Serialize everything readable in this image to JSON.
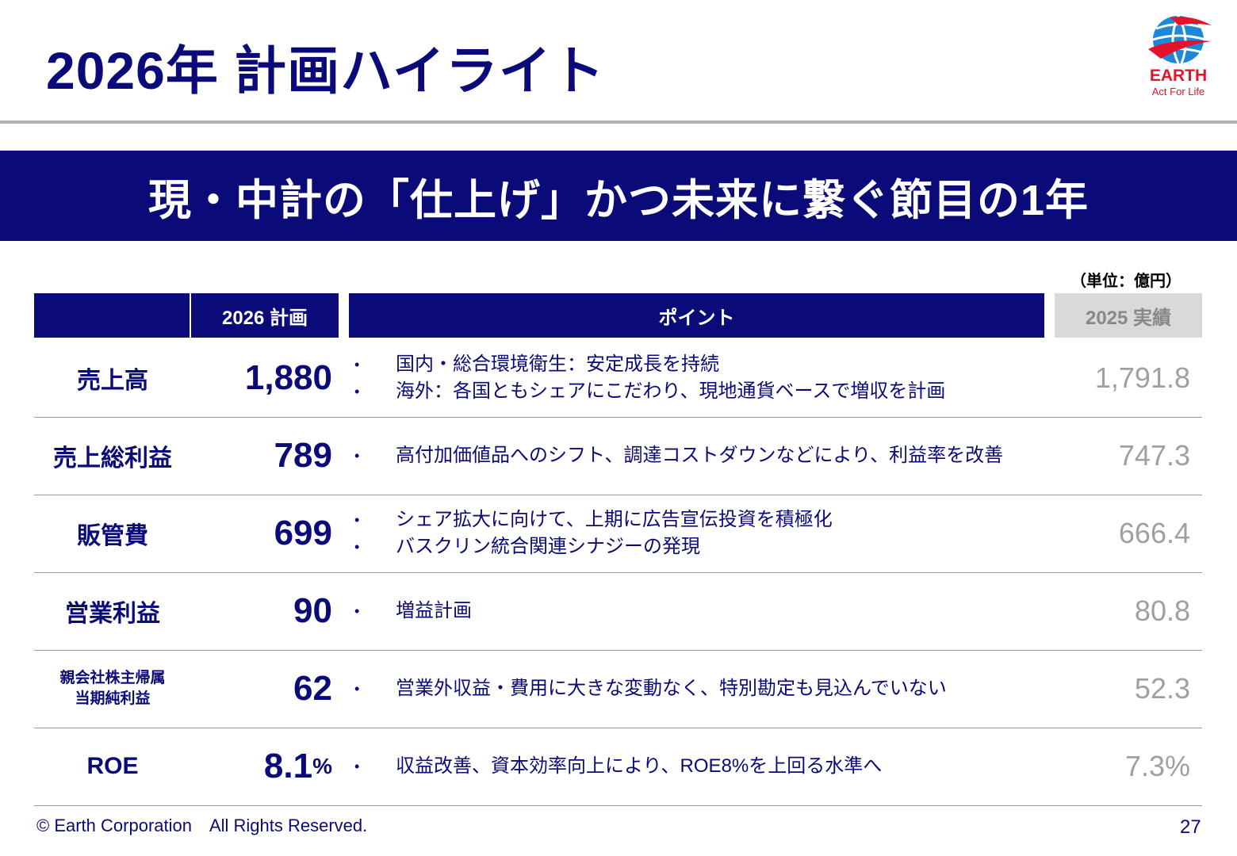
{
  "page": {
    "title": "2026年 計画ハイライト",
    "banner": "現・中計の「仕上げ」かつ未来に繋ぐ節目の1年",
    "unit": "（単位：億円）",
    "footer": "© Earth Corporation　All Rights Reserved.",
    "page_number": "27"
  },
  "logo": {
    "name": "EARTH",
    "tagline": "Act For Life",
    "color": "#e4122a",
    "globe_color": "#1e88d8"
  },
  "table": {
    "headers": {
      "plan": "2026 計画",
      "points": "ポイント",
      "actual": "2025 実績"
    },
    "rows": [
      {
        "label": "売上高",
        "plan": "1,880",
        "plan_suffix": "",
        "points": [
          "国内・総合環境衛生：安定成長を持続",
          "海外：各国ともシェアにこだわり、現地通貨ベースで増収を計画"
        ],
        "actual": "1,791.8"
      },
      {
        "label": "売上総利益",
        "plan": "789",
        "plan_suffix": "",
        "points": [
          "高付加価値品へのシフト、調達コストダウンなどにより、利益率を改善"
        ],
        "actual": "747.3"
      },
      {
        "label": "販管費",
        "plan": "699",
        "plan_suffix": "",
        "points": [
          "シェア拡大に向けて、上期に広告宣伝投資を積極化",
          "バスクリン統合関連シナジーの発現"
        ],
        "actual": "666.4"
      },
      {
        "label": "営業利益",
        "plan": "90",
        "plan_suffix": "",
        "points": [
          "増益計画"
        ],
        "actual": "80.8"
      },
      {
        "label_line1": "親会社株主帰属",
        "label_line2": "当期純利益",
        "plan": "62",
        "plan_suffix": "",
        "points": [
          "営業外収益・費用に大きな変動なく、特別勘定も見込んでいない"
        ],
        "actual": "52.3"
      },
      {
        "label": "ROE",
        "plan": "8.1",
        "plan_suffix": "%",
        "points": [
          "収益改善、資本効率向上により、ROE8%を上回る水準へ"
        ],
        "actual": "7.3%"
      }
    ]
  },
  "colors": {
    "navy": "#0a0a78",
    "gray_text": "#a0a0a0",
    "header_gray": "#d9d9d9"
  }
}
